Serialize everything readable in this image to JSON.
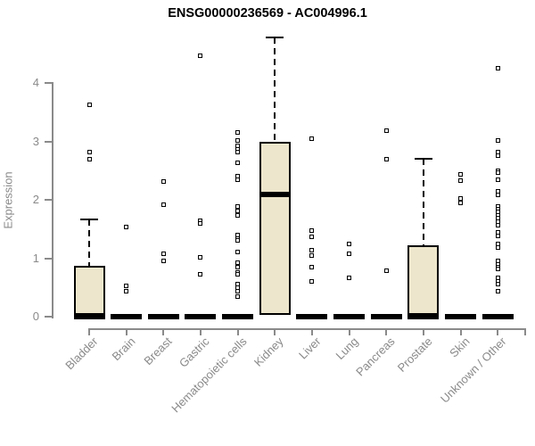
{
  "chart_data": {
    "type": "boxplot",
    "title": "ENSG00000236569 - AC004996.1",
    "xlabel": "",
    "ylabel": "Expression",
    "yticks": [
      0,
      1,
      2,
      3,
      4
    ],
    "ylim": [
      0,
      4.85
    ],
    "grid": false,
    "legend": "none",
    "categories": [
      "Bladder",
      "Brain",
      "Breast",
      "Gastric",
      "Hematopoietic cells",
      "Kidney",
      "Liver",
      "Lung",
      "Pancreas",
      "Prostate",
      "Skin",
      "Unknown / Other"
    ],
    "series": [
      {
        "category": "Bladder",
        "q1": 0,
        "median": 0,
        "q3": 0.87,
        "whisker_low": 0,
        "whisker_high": 1.66,
        "outliers": [
          3.63,
          2.82,
          2.7
        ]
      },
      {
        "category": "Brain",
        "q1": 0,
        "median": 0,
        "q3": 0,
        "whisker_low": 0,
        "whisker_high": 0,
        "outliers": [
          1.53,
          0.53,
          0.44
        ]
      },
      {
        "category": "Breast",
        "q1": 0,
        "median": 0,
        "q3": 0,
        "whisker_low": 0,
        "whisker_high": 0,
        "outliers": [
          2.31,
          1.91,
          1.07,
          0.96
        ]
      },
      {
        "category": "Gastric",
        "q1": 0,
        "median": 0,
        "q3": 0,
        "whisker_low": 0,
        "whisker_high": 0,
        "outliers": [
          4.47,
          1.64,
          1.6,
          1.02,
          0.72
        ]
      },
      {
        "category": "Hematopoietic cells",
        "q1": 0,
        "median": 0,
        "q3": 0,
        "whisker_low": 0,
        "whisker_high": 0,
        "outliers": [
          3.16,
          3.02,
          2.93,
          2.87,
          2.82,
          2.64,
          2.41,
          2.34,
          1.88,
          1.81,
          1.73,
          1.4,
          1.34,
          1.3,
          1.1,
          0.92,
          0.84,
          0.76,
          0.73,
          0.56,
          0.49,
          0.43,
          0.34
        ]
      },
      {
        "category": "Kidney",
        "q1": 0,
        "median": 2.09,
        "q3": 2.99,
        "whisker_low": 0,
        "whisker_high": 4.78,
        "outliers": []
      },
      {
        "category": "Liver",
        "q1": 0,
        "median": 0,
        "q3": 0,
        "whisker_low": 0,
        "whisker_high": 0,
        "outliers": [
          3.04,
          1.48,
          1.36,
          1.13,
          1.04,
          0.85,
          0.6
        ]
      },
      {
        "category": "Lung",
        "q1": 0,
        "median": 0,
        "q3": 0,
        "whisker_low": 0,
        "whisker_high": 0,
        "outliers": [
          1.25,
          1.07,
          0.67
        ]
      },
      {
        "category": "Pancreas",
        "q1": 0,
        "median": 0,
        "q3": 0,
        "whisker_low": 0,
        "whisker_high": 0,
        "outliers": [
          3.19,
          2.69,
          0.79
        ]
      },
      {
        "category": "Prostate",
        "q1": 0,
        "median": 0,
        "q3": 1.22,
        "whisker_low": 0,
        "whisker_high": 2.7,
        "outliers": []
      },
      {
        "category": "Skin",
        "q1": 0,
        "median": 0,
        "q3": 0,
        "whisker_low": 0,
        "whisker_high": 0,
        "outliers": [
          2.44,
          2.33,
          2.03,
          1.94
        ]
      },
      {
        "category": "Unknown / Other",
        "q1": 0,
        "median": 0,
        "q3": 0,
        "whisker_low": 0,
        "whisker_high": 0,
        "outliers": [
          4.25,
          3.02,
          2.82,
          2.75,
          2.49,
          2.46,
          2.34,
          2.14,
          2.09,
          1.88,
          1.84,
          1.79,
          1.74,
          1.68,
          1.62,
          1.57,
          1.45,
          1.38,
          1.25,
          1.19,
          0.96,
          0.9,
          0.85,
          0.81,
          0.66,
          0.6,
          0.56,
          0.43
        ]
      }
    ],
    "colors": {
      "box_fill": "#EDE6CC",
      "box_border": "#000000",
      "whisker": "#000000",
      "median": "#000000",
      "axis": "#8a8a8a",
      "tick_label": "#8a8a8a",
      "title": "#000000",
      "background": "#FFFFFF"
    }
  }
}
